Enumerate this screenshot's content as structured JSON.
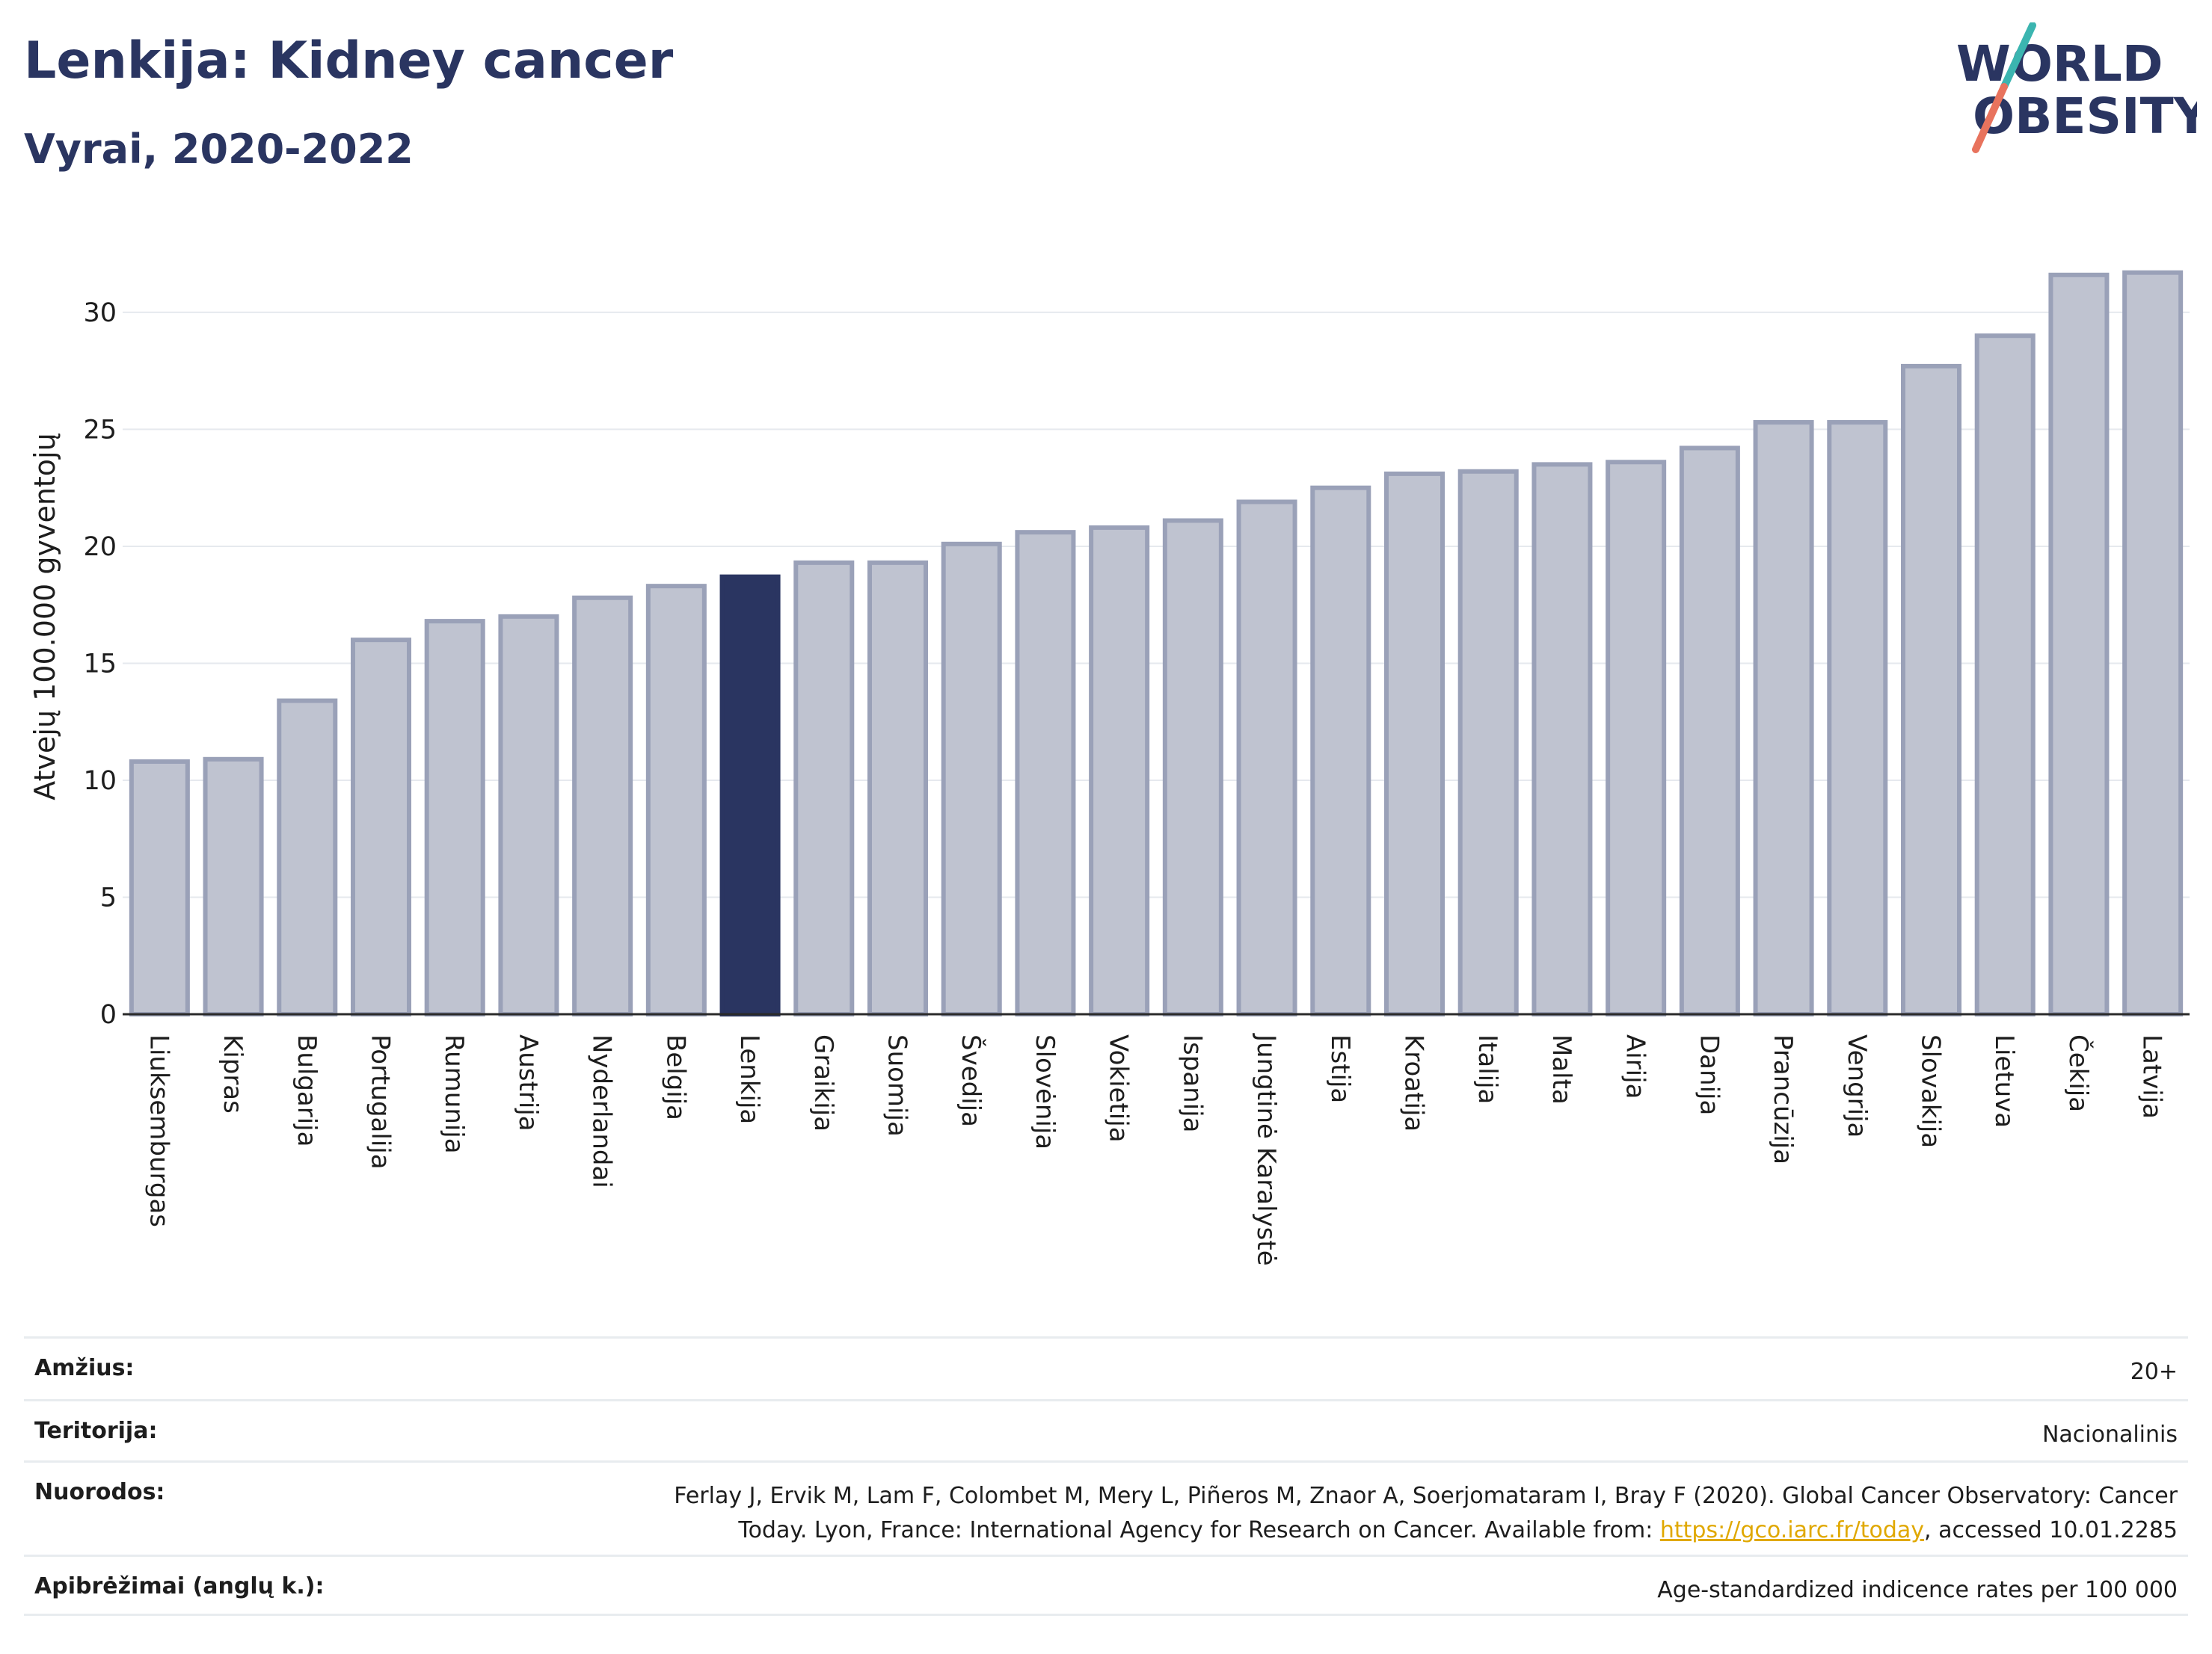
{
  "header": {
    "title": "Lenkija: Kidney cancer",
    "subtitle": "Vyrai, 2020-2022"
  },
  "logo": {
    "line1_pre": "W",
    "line1_o": "O",
    "line1_post": "RLD",
    "line2_o": "O",
    "line2_post": "BESITY"
  },
  "colors": {
    "bar": "#bfc3d0",
    "bar_edge": "#9aa1b8",
    "highlight": "#2a3561",
    "grid": "#e6e9ee",
    "logo_teal": "#3bb5b0",
    "logo_coral": "#e8735d"
  },
  "chart_data": {
    "type": "bar",
    "title": "",
    "xlabel": "",
    "ylabel": "Atvejų 100.000 gyventojų",
    "ylim": [
      0,
      33
    ],
    "yticks": [
      0,
      5,
      10,
      15,
      20,
      25,
      30
    ],
    "grid": true,
    "highlight": "Lenkija",
    "categories": [
      "Liuksemburgas",
      "Kipras",
      "Bulgarija",
      "Portugalija",
      "Rumunija",
      "Austrija",
      "Nyderlandai",
      "Belgija",
      "Lenkija",
      "Graikija",
      "Suomija",
      "Švedija",
      "Slovėnija",
      "Vokietija",
      "Ispanija",
      "Jungtinė Karalystė",
      "Estija",
      "Kroatija",
      "Italija",
      "Malta",
      "Airija",
      "Danija",
      "Prancūzija",
      "Vengrija",
      "Slovakija",
      "Lietuva",
      "Čekija",
      "Latvija"
    ],
    "values": [
      10.8,
      10.9,
      13.4,
      16.0,
      16.8,
      17.0,
      17.8,
      18.3,
      18.7,
      19.3,
      19.3,
      20.1,
      20.6,
      20.8,
      21.1,
      21.9,
      22.5,
      23.1,
      23.2,
      23.5,
      23.6,
      24.2,
      25.3,
      25.3,
      27.7,
      29.0,
      31.6,
      31.7
    ]
  },
  "info": {
    "age_label": "Amžius:",
    "age_value": "20+",
    "territory_label": "Teritorija:",
    "territory_value": "Nacionalinis",
    "references_label": "Nuorodos:",
    "references_line1": "Ferlay J, Ervik M, Lam F, Colombet M, Mery L, Piñeros M, Znaor A, Soerjomataram I, Bray F (2020). Global Cancer Observatory: Cancer",
    "references_line2_pre": "Today. Lyon, France: International Agency for Research on Cancer. Available from: ",
    "references_link": "https://gco.iarc.fr/today",
    "references_line2_post": ", accessed 10.01.2285",
    "definitions_label": "Apibrėžimai (anglų k.):",
    "definitions_value": "Age-standardized indicence rates per 100 000"
  }
}
